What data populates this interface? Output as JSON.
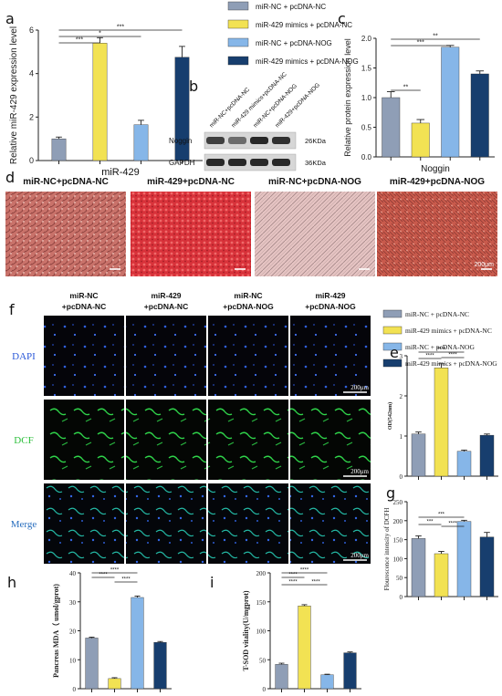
{
  "panel_letters": [
    "a",
    "b",
    "c",
    "d",
    "e",
    "f",
    "g",
    "h",
    "i"
  ],
  "colors": {
    "miR-NC + pcDNA-NC": "#8f9eb6",
    "miR-429 mimics + pcDNA-NC": "#f2e253",
    "miR-NC + pcDNA-NOG": "#86b6e8",
    "miR-429 mimics + pcDNA-NOG": "#173e6e"
  },
  "legend_top": [
    "miR-NC + pcDNA-NC",
    "miR-429 mimics + pcDNA-NC",
    "miR-NC + pcDNA-NOG",
    "miR-429 mimics + pcDNA-NOG"
  ],
  "legend_mid": [
    "miR-NC + pcDNA-NC",
    "miR-429 mimics + pcDNA-NC",
    "miR-NC + pcDNA-NOG",
    "miR-429 mimics + pcDNA-NOG"
  ],
  "western_blot": {
    "lanes": [
      "miR-NC+pcDNA-NC",
      "miR-429 mimics+pcDNA-NC",
      "miR-NC+pcDNA-NOG",
      "miR-429+pcDNA-NOG"
    ],
    "rows": [
      {
        "label": "Noggin",
        "size": "26KDa",
        "intensity": [
          0.85,
          0.55,
          1.0,
          0.95
        ]
      },
      {
        "label": "GAPDH",
        "size": "36KDa",
        "intensity": [
          1.0,
          1.0,
          1.0,
          1.0
        ]
      }
    ]
  },
  "panel_d_titles": [
    "miR-NC+pcDNA-NC",
    "miR-429+pcDNA-NC",
    "miR-NC+pcDNA-NOG",
    "miR-429+pcDNA-NOG"
  ],
  "panel_d_scale": "200μm",
  "panel_f_columns": [
    [
      "miR-NC",
      "+pcDNA-NC"
    ],
    [
      "miR-429",
      "+pcDNA-NC"
    ],
    [
      "miR-NC",
      "+pcDNA-NOG"
    ],
    [
      "miR-429",
      "+pcDNA-NOG"
    ]
  ],
  "panel_f_rows": [
    {
      "label": "DAPI",
      "color": "#2a58d8"
    },
    {
      "label": "DCF",
      "color": "#2bbf3a"
    },
    {
      "label": "Merge",
      "color": "#2a6fbf"
    }
  ],
  "panel_f_scale": "200μm",
  "chart_data": [
    {
      "panel": "a",
      "type": "bar",
      "categories": [
        "miR-NC + pcDNA-NC",
        "miR-429 mimics + pcDNA-NC",
        "miR-NC + pcDNA-NOG",
        "miR-429 mimics + pcDNA-NOG"
      ],
      "values": [
        1.0,
        5.4,
        1.65,
        4.75
      ],
      "errors": [
        0.08,
        0.25,
        0.2,
        0.5
      ],
      "xlabel": "miR-429",
      "ylabel": "Relative miR-429 expression level",
      "ylim": [
        0,
        6
      ],
      "yticks": [
        "0",
        "2",
        "4",
        "6"
      ],
      "significance": [
        [
          "***"
        ],
        [
          "*"
        ],
        [
          "***"
        ]
      ]
    },
    {
      "panel": "c",
      "type": "bar",
      "categories": [
        "miR-NC + pcDNA-NC",
        "miR-429 mimics + pcDNA-NC",
        "miR-NC + pcDNA-NOG",
        "miR-429 mimics + pcDNA-NOG"
      ],
      "values": [
        1.0,
        0.57,
        1.85,
        1.4
      ],
      "errors": [
        0.1,
        0.06,
        0.03,
        0.05
      ],
      "xlabel": "Noggin",
      "ylabel": "Relative protein expression level",
      "ylim": [
        0,
        2.0
      ],
      "yticks": [
        "0.0",
        "0.5",
        "1.0",
        "1.5",
        "2.0"
      ],
      "significance": [
        [
          "**"
        ],
        [
          "***"
        ],
        [
          "**"
        ]
      ]
    },
    {
      "panel": "e",
      "type": "bar",
      "categories": [
        "miR-NC + pcDNA-NC",
        "miR-429 mimics + pcDNA-NC",
        "miR-NC + pcDNA-NOG",
        "miR-429 mimics + pcDNA-NOG"
      ],
      "values": [
        1.05,
        2.7,
        0.62,
        1.02
      ],
      "errors": [
        0.05,
        0.1,
        0.03,
        0.03
      ],
      "xlabel": "",
      "ylabel": "OD(542nm)",
      "ylim": [
        0,
        3
      ],
      "yticks": [
        "0",
        "1",
        "2",
        "3"
      ],
      "significance": [
        [
          "****"
        ],
        [
          "****"
        ],
        [
          "****"
        ]
      ]
    },
    {
      "panel": "g",
      "type": "bar",
      "categories": [
        "miR-NC + pcDNA-NC",
        "miR-429 mimics + pcDNA-NC",
        "miR-NC + pcDNA-NOG",
        "miR-429 mimics + pcDNA-NOG"
      ],
      "values": [
        153,
        113,
        198,
        157
      ],
      "errors": [
        7,
        6,
        3,
        12
      ],
      "xlabel": "",
      "ylabel": "Flourescence intensity of DCFH",
      "ylim": [
        0,
        250
      ],
      "yticks": [
        "0",
        "50",
        "100",
        "150",
        "200",
        "250"
      ],
      "significance": [
        [
          "***"
        ],
        [
          "***"
        ],
        [
          "****"
        ]
      ]
    },
    {
      "panel": "h",
      "type": "bar",
      "categories": [
        "miR-NC + pcDNA-NC",
        "miR-429 mimics + pcDNA-NC",
        "miR-NC + pcDNA-NOG",
        "miR-429 mimics + pcDNA-NOG"
      ],
      "values": [
        17.5,
        3.5,
        31.5,
        16.0
      ],
      "errors": [
        0.3,
        0.3,
        0.5,
        0.3
      ],
      "xlabel": "",
      "ylabel": "Pancreas MDA（ umol/gprot)",
      "ylim": [
        0,
        40
      ],
      "yticks": [
        "0",
        "10",
        "20",
        "30",
        "40"
      ],
      "significance": [
        [
          "****"
        ],
        [
          "****"
        ],
        [
          "****"
        ]
      ]
    },
    {
      "panel": "i",
      "type": "bar",
      "categories": [
        "miR-NC + pcDNA-NC",
        "miR-429 mimics + pcDNA-NC",
        "miR-NC + pcDNA-NOG",
        "miR-429 mimics + pcDNA-NOG"
      ],
      "values": [
        42,
        143,
        24,
        62
      ],
      "errors": [
        2,
        2,
        1,
        1.5
      ],
      "xlabel": "",
      "ylabel": "T-SOD vitality(U/mgprot)",
      "ylim": [
        0,
        200
      ],
      "yticks": [
        "0",
        "50",
        "100",
        "150",
        "200"
      ],
      "significance": [
        [
          "****"
        ],
        [
          "****"
        ],
        [
          "****"
        ],
        [
          "****"
        ]
      ]
    }
  ]
}
